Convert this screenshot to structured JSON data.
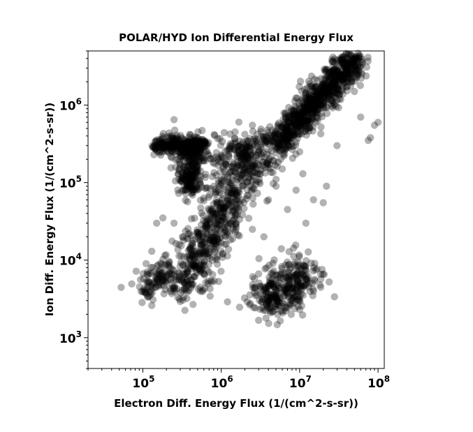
{
  "chart_data": {
    "type": "scatter",
    "title": "POLAR/HYD  Ion Differential Energy Flux",
    "xlabel": "Electron Diff. Energy Flux (1/(cm^2-s-sr))",
    "ylabel": "Ion Diff. Energy Flux (1/(cm^2-s-sr))",
    "x_scale": "log",
    "y_scale": "log",
    "xlim": [
      20000,
      120000000
    ],
    "ylim": [
      400,
      5000000
    ],
    "x_ticks": [
      {
        "base": "10",
        "exp": "5",
        "value": 100000
      },
      {
        "base": "10",
        "exp": "6",
        "value": 1000000
      },
      {
        "base": "10",
        "exp": "7",
        "value": 10000000
      },
      {
        "base": "10",
        "exp": "8",
        "value": 100000000
      }
    ],
    "y_ticks": [
      {
        "base": "10",
        "exp": "3",
        "value": 1000
      },
      {
        "base": "10",
        "exp": "4",
        "value": 10000
      },
      {
        "base": "10",
        "exp": "5",
        "value": 100000
      },
      {
        "base": "10",
        "exp": "6",
        "value": 1000000
      }
    ],
    "marker_color": "#000000",
    "marker_alpha": 0.3,
    "grid": false,
    "clusters": [
      {
        "x": [
          5000000,
          50000000
        ],
        "y": [
          300000,
          4000000
        ],
        "spread": 0.08,
        "n": 900
      },
      {
        "x": [
          150000,
          600000
        ],
        "y": [
          300000,
          300000
        ],
        "spread": 0.05,
        "n": 300
      },
      {
        "x": [
          400000,
          400000
        ],
        "y": [
          80000,
          300000
        ],
        "spread": 0.06,
        "n": 250
      },
      {
        "x": [
          300000,
          3000000
        ],
        "y": [
          4000,
          300000
        ],
        "spread": 0.12,
        "n": 700
      },
      {
        "x": [
          3500000,
          12000000
        ],
        "y": [
          3000,
          7000
        ],
        "spread": 0.12,
        "n": 350
      },
      {
        "x": [
          100000,
          200000
        ],
        "y": [
          4000,
          7000
        ],
        "spread": 0.08,
        "n": 100
      },
      {
        "x": [
          700000,
          3000000
        ],
        "y": [
          200000,
          300000
        ],
        "spread": 0.1,
        "n": 120
      }
    ],
    "points": [
      [
        250000,
        650000
      ],
      [
        22000000,
        90000
      ],
      [
        20000000,
        55000
      ],
      [
        80000000,
        380000
      ],
      [
        100000000,
        600000
      ],
      [
        90000000,
        550000
      ],
      [
        75000000,
        350000
      ],
      [
        11000000,
        130000
      ],
      [
        9000000,
        80000
      ],
      [
        2500000,
        550000
      ],
      [
        2000000,
        420000
      ],
      [
        1500000,
        450000
      ],
      [
        4000000,
        60000
      ],
      [
        7000000,
        45000
      ],
      [
        5000000,
        90000
      ],
      [
        10000000,
        250000
      ],
      [
        3000000,
        170000
      ],
      [
        5000000,
        110000
      ],
      [
        1000000,
        110000
      ],
      [
        800000,
        90000
      ],
      [
        130000,
        13000
      ],
      [
        110000,
        9000
      ],
      [
        150000,
        30000
      ],
      [
        250000,
        30000
      ],
      [
        1200000,
        2900
      ],
      [
        10000000,
        2300
      ],
      [
        5000000,
        2700
      ],
      [
        130000,
        2600
      ],
      [
        180000,
        35000
      ],
      [
        320000,
        20000
      ],
      [
        2500000,
        25000
      ],
      [
        3500000,
        20000
      ],
      [
        12000000,
        30000
      ],
      [
        15000000,
        60000
      ],
      [
        6000000,
        150000
      ],
      [
        1500000,
        60000
      ],
      [
        900000,
        200000
      ],
      [
        50000000,
        1500000
      ],
      [
        30000000,
        300000
      ],
      [
        60000000,
        700000
      ]
    ]
  }
}
